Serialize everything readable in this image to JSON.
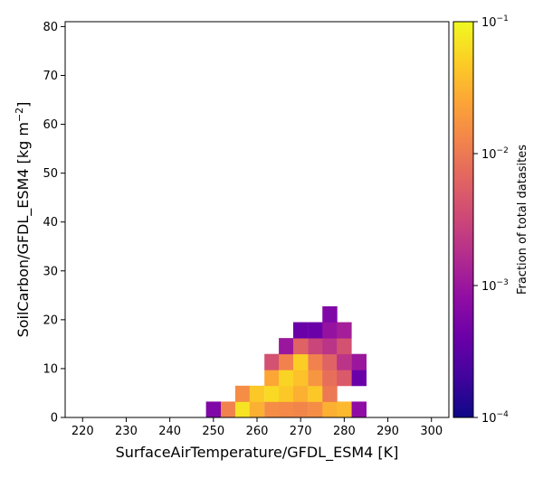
{
  "chart_data": {
    "type": "heatmap",
    "title": "",
    "xlabel": "SurfaceAirTemperature/GFDL_ESM4 [K]",
    "ylabel_main": "SoilCarbon/GFDL_ESM4 [kg m",
    "ylabel_exp": "−2",
    "ylabel_close": "]",
    "xlim": [
      216,
      304
    ],
    "ylim": [
      0,
      81
    ],
    "xticks": [
      220,
      230,
      240,
      250,
      260,
      270,
      280,
      290,
      300
    ],
    "yticks": [
      0,
      10,
      20,
      30,
      40,
      50,
      60,
      70,
      80
    ],
    "bin_width_x": 3.33,
    "bin_height_y": 3.25,
    "colormap": "plasma",
    "colorbar": {
      "label": "Fraction of total datasites",
      "scale": "log",
      "range": [
        0.0001,
        0.1
      ],
      "ticks": [
        {
          "value": 0.1,
          "base": "10",
          "exp": "−1"
        },
        {
          "value": 0.01,
          "base": "10",
          "exp": "−2"
        },
        {
          "value": 0.001,
          "base": "10",
          "exp": "−3"
        },
        {
          "value": 0.0001,
          "base": "10",
          "exp": "−4"
        }
      ]
    },
    "cells": [
      {
        "x0": 248.3,
        "y0": 0,
        "value": 0.0006
      },
      {
        "x0": 251.7,
        "y0": 0,
        "value": 0.012
      },
      {
        "x0": 255.0,
        "y0": 0,
        "value": 0.07
      },
      {
        "x0": 258.3,
        "y0": 0,
        "value": 0.03
      },
      {
        "x0": 261.7,
        "y0": 0,
        "value": 0.015
      },
      {
        "x0": 265.0,
        "y0": 0,
        "value": 0.014
      },
      {
        "x0": 268.3,
        "y0": 0,
        "value": 0.013
      },
      {
        "x0": 271.7,
        "y0": 0,
        "value": 0.015
      },
      {
        "x0": 275.0,
        "y0": 0,
        "value": 0.03
      },
      {
        "x0": 278.3,
        "y0": 0,
        "value": 0.035
      },
      {
        "x0": 281.7,
        "y0": 0,
        "value": 0.0008
      },
      {
        "x0": 255.0,
        "y0": 3.25,
        "value": 0.015
      },
      {
        "x0": 258.3,
        "y0": 3.25,
        "value": 0.045
      },
      {
        "x0": 261.7,
        "y0": 3.25,
        "value": 0.06
      },
      {
        "x0": 265.0,
        "y0": 3.25,
        "value": 0.045
      },
      {
        "x0": 268.3,
        "y0": 3.25,
        "value": 0.03
      },
      {
        "x0": 271.7,
        "y0": 3.25,
        "value": 0.045
      },
      {
        "x0": 275.0,
        "y0": 3.25,
        "value": 0.01
      },
      {
        "x0": 261.7,
        "y0": 6.5,
        "value": 0.025
      },
      {
        "x0": 265.0,
        "y0": 6.5,
        "value": 0.055
      },
      {
        "x0": 268.3,
        "y0": 6.5,
        "value": 0.04
      },
      {
        "x0": 271.7,
        "y0": 6.5,
        "value": 0.018
      },
      {
        "x0": 275.0,
        "y0": 6.5,
        "value": 0.008
      },
      {
        "x0": 278.3,
        "y0": 6.5,
        "value": 0.005
      },
      {
        "x0": 281.7,
        "y0": 6.5,
        "value": 0.0004
      },
      {
        "x0": 261.7,
        "y0": 9.75,
        "value": 0.004
      },
      {
        "x0": 265.0,
        "y0": 9.75,
        "value": 0.012
      },
      {
        "x0": 268.3,
        "y0": 9.75,
        "value": 0.05
      },
      {
        "x0": 271.7,
        "y0": 9.75,
        "value": 0.012
      },
      {
        "x0": 275.0,
        "y0": 9.75,
        "value": 0.006
      },
      {
        "x0": 278.3,
        "y0": 9.75,
        "value": 0.002
      },
      {
        "x0": 281.7,
        "y0": 9.75,
        "value": 0.001
      },
      {
        "x0": 265.0,
        "y0": 13.0,
        "value": 0.001
      },
      {
        "x0": 268.3,
        "y0": 13.0,
        "value": 0.006
      },
      {
        "x0": 271.7,
        "y0": 13.0,
        "value": 0.003
      },
      {
        "x0": 275.0,
        "y0": 13.0,
        "value": 0.002
      },
      {
        "x0": 278.3,
        "y0": 13.0,
        "value": 0.004
      },
      {
        "x0": 268.3,
        "y0": 16.25,
        "value": 0.0004
      },
      {
        "x0": 271.7,
        "y0": 16.25,
        "value": 0.0004
      },
      {
        "x0": 275.0,
        "y0": 16.25,
        "value": 0.0009
      },
      {
        "x0": 278.3,
        "y0": 16.25,
        "value": 0.0012
      },
      {
        "x0": 275.0,
        "y0": 19.5,
        "value": 0.0006
      }
    ]
  }
}
